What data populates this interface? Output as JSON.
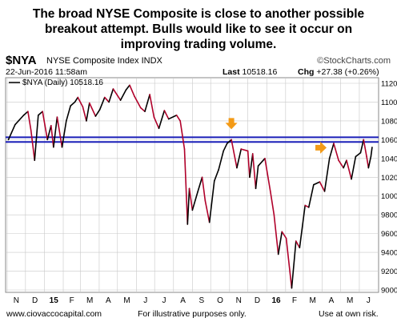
{
  "headline": {
    "line1": "The broad NYSE Composite is close to another possible",
    "line2": "breakout attempt.  Bulls would like to see it occur on",
    "line3": "improving trading volume."
  },
  "header": {
    "symbol": "$NYA",
    "name": "NYSE Composite Index  INDX",
    "credit": "©StockCharts.com",
    "date": "22-Jun-2016 11:58am",
    "last_label": "Last",
    "last_value": "10518.16",
    "chg_label": "Chg",
    "chg_value": "+27.38 (+0.26%)"
  },
  "footer": {
    "left": "www.ciovaccocapital.com",
    "center": "For illustrative purposes only.",
    "right": "Use at own risk."
  },
  "colors": {
    "up": "#000000",
    "down": "#b0002a",
    "resistance": "#1a1fb8",
    "arrow": "#f39a16",
    "grid": "#c8c8c8"
  },
  "chart_data": {
    "type": "line",
    "legend": "$NYA (Daily) 10518.16",
    "legend_position": "top-left",
    "grid": true,
    "ylim": [
      9000,
      11200
    ],
    "yticks": [
      "9000",
      "9200",
      "9400",
      "9600",
      "9800",
      "10000",
      "10200",
      "10400",
      "10600",
      "10800",
      "11000",
      "11200"
    ],
    "xticks": [
      "N",
      "D",
      "15",
      "F",
      "M",
      "A",
      "M",
      "J",
      "J",
      "A",
      "S",
      "O",
      "N",
      "D",
      "16",
      "F",
      "M",
      "A",
      "M",
      "J"
    ],
    "x_start": "2014-11-01",
    "x_end": "2016-06-30",
    "resistance_lines": [
      10625,
      10575
    ],
    "annotations": [
      {
        "type": "arrow-down",
        "x": "2015-11-04",
        "y": 10745
      },
      {
        "type": "arrow-right",
        "x": "2016-04-03",
        "y": 10515
      }
    ],
    "series": [
      {
        "name": "$NYA (Daily)",
        "points": [
          [
            "2014-11-03",
            10600
          ],
          [
            "2014-11-14",
            10760
          ],
          [
            "2014-11-28",
            10860
          ],
          [
            "2014-12-05",
            10900
          ],
          [
            "2014-12-10",
            10700
          ],
          [
            "2014-12-16",
            10380
          ],
          [
            "2014-12-22",
            10860
          ],
          [
            "2014-12-29",
            10900
          ],
          [
            "2015-01-06",
            10600
          ],
          [
            "2015-01-12",
            10750
          ],
          [
            "2015-01-16",
            10520
          ],
          [
            "2015-01-22",
            10840
          ],
          [
            "2015-01-30",
            10520
          ],
          [
            "2015-02-06",
            10800
          ],
          [
            "2015-02-13",
            10960
          ],
          [
            "2015-02-20",
            11000
          ],
          [
            "2015-02-25",
            11050
          ],
          [
            "2015-03-05",
            10950
          ],
          [
            "2015-03-11",
            10800
          ],
          [
            "2015-03-16",
            10990
          ],
          [
            "2015-03-26",
            10850
          ],
          [
            "2015-04-02",
            10920
          ],
          [
            "2015-04-10",
            11050
          ],
          [
            "2015-04-17",
            11000
          ],
          [
            "2015-04-24",
            11140
          ],
          [
            "2015-05-06",
            11020
          ],
          [
            "2015-05-15",
            11130
          ],
          [
            "2015-05-21",
            11180
          ],
          [
            "2015-05-29",
            11060
          ],
          [
            "2015-06-08",
            10940
          ],
          [
            "2015-06-15",
            10900
          ],
          [
            "2015-06-23",
            11080
          ],
          [
            "2015-06-30",
            10840
          ],
          [
            "2015-07-08",
            10720
          ],
          [
            "2015-07-17",
            10910
          ],
          [
            "2015-07-24",
            10820
          ],
          [
            "2015-08-06",
            10860
          ],
          [
            "2015-08-12",
            10800
          ],
          [
            "2015-08-19",
            10500
          ],
          [
            "2015-08-24",
            9700
          ],
          [
            "2015-08-27",
            10080
          ],
          [
            "2015-09-01",
            9850
          ],
          [
            "2015-09-10",
            10050
          ],
          [
            "2015-09-17",
            10200
          ],
          [
            "2015-09-22",
            9950
          ],
          [
            "2015-09-29",
            9720
          ],
          [
            "2015-10-07",
            10160
          ],
          [
            "2015-10-14",
            10280
          ],
          [
            "2015-10-22",
            10480
          ],
          [
            "2015-10-28",
            10560
          ],
          [
            "2015-11-04",
            10600
          ],
          [
            "2015-11-13",
            10300
          ],
          [
            "2015-11-20",
            10500
          ],
          [
            "2015-12-01",
            10480
          ],
          [
            "2015-12-04",
            10200
          ],
          [
            "2015-12-09",
            10450
          ],
          [
            "2015-12-14",
            10080
          ],
          [
            "2015-12-18",
            10320
          ],
          [
            "2015-12-29",
            10400
          ],
          [
            "2016-01-07",
            10050
          ],
          [
            "2016-01-13",
            9800
          ],
          [
            "2016-01-20",
            9380
          ],
          [
            "2016-01-26",
            9620
          ],
          [
            "2016-02-02",
            9550
          ],
          [
            "2016-02-11",
            9020
          ],
          [
            "2016-02-18",
            9520
          ],
          [
            "2016-02-24",
            9450
          ],
          [
            "2016-03-04",
            9900
          ],
          [
            "2016-03-10",
            9880
          ],
          [
            "2016-03-18",
            10120
          ],
          [
            "2016-03-28",
            10150
          ],
          [
            "2016-04-05",
            10050
          ],
          [
            "2016-04-13",
            10400
          ],
          [
            "2016-04-20",
            10560
          ],
          [
            "2016-04-28",
            10380
          ],
          [
            "2016-05-06",
            10300
          ],
          [
            "2016-05-11",
            10380
          ],
          [
            "2016-05-19",
            10180
          ],
          [
            "2016-05-26",
            10420
          ],
          [
            "2016-06-03",
            10460
          ],
          [
            "2016-06-08",
            10600
          ],
          [
            "2016-06-13",
            10420
          ],
          [
            "2016-06-16",
            10300
          ],
          [
            "2016-06-20",
            10420
          ],
          [
            "2016-06-22",
            10518
          ]
        ]
      }
    ]
  }
}
